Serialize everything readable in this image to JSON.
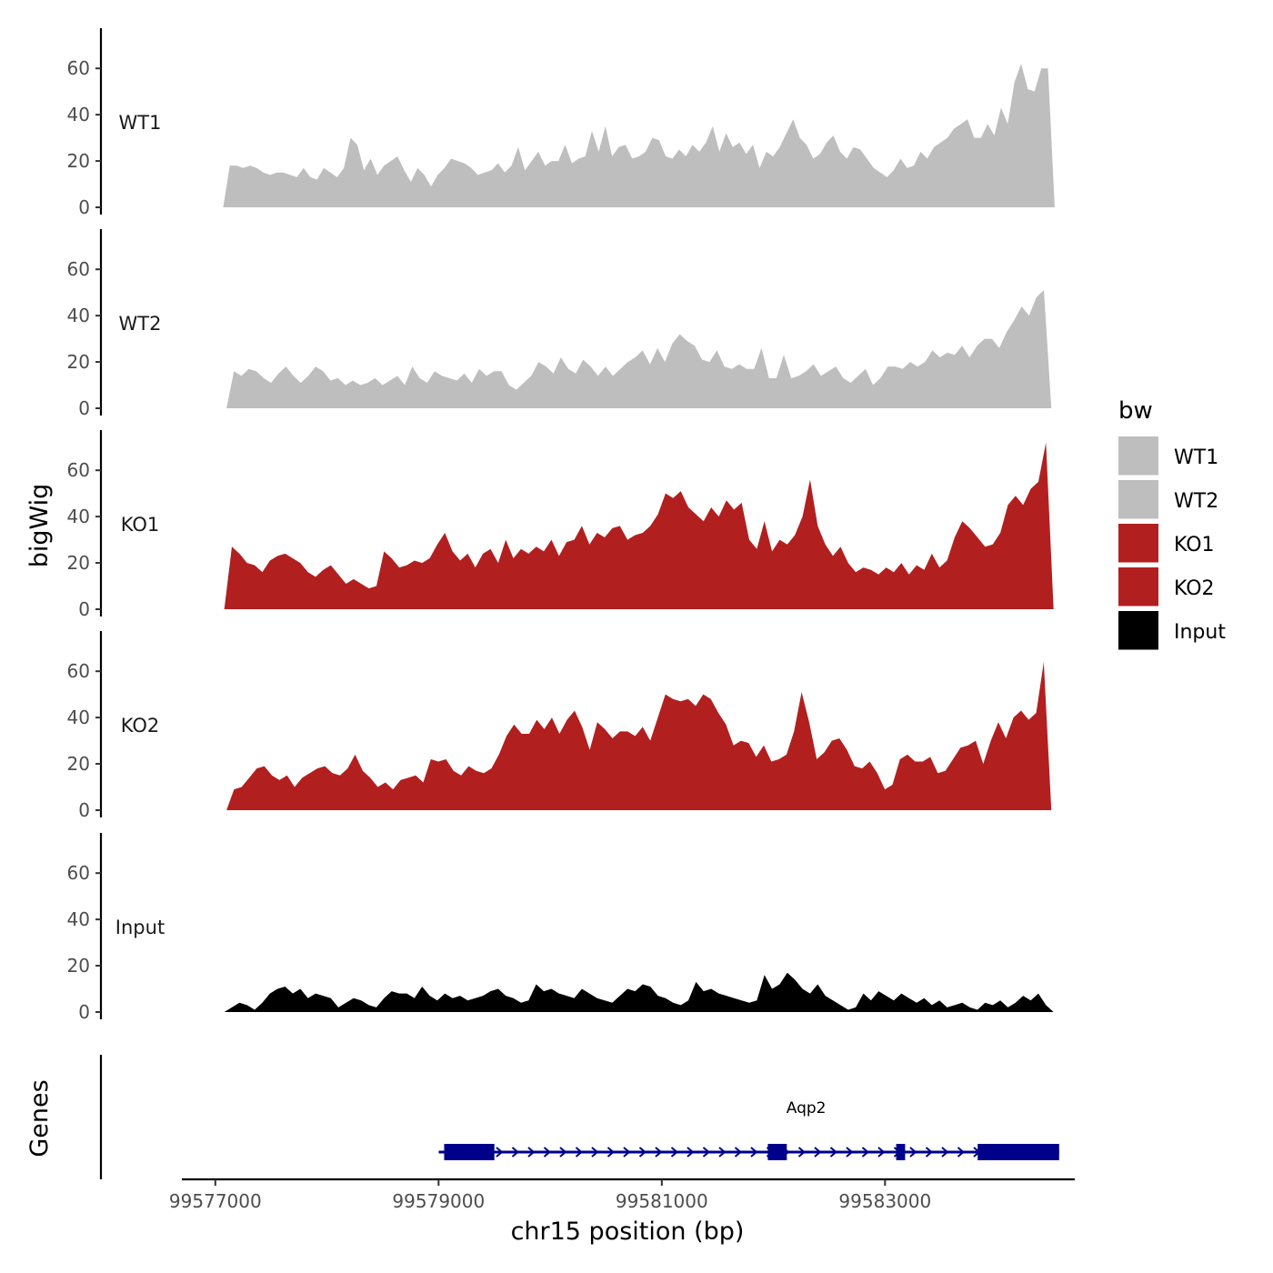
{
  "chart_data": {
    "type": "area",
    "ylabel": "bigWig",
    "xlabel": "chr15 position (bp)",
    "genes_label": "Genes",
    "chromosome": "chr15",
    "x_range": [
      99576700,
      99584700
    ],
    "x_ticks": [
      99577000,
      99579000,
      99581000,
      99583000
    ],
    "x_tick_labels": [
      "99577000",
      "99579000",
      "99581000",
      "99583000"
    ],
    "ylim": [
      0,
      75
    ],
    "y_ticks": [
      0,
      20,
      40,
      60
    ],
    "y_tick_labels": [
      "0",
      "20",
      "40",
      "60"
    ],
    "series": [
      {
        "name": "WT1",
        "color": "#bebebe",
        "x_start": 99577070,
        "x_end": 99584520,
        "values": [
          0,
          18,
          18,
          17,
          18,
          17,
          15,
          14,
          15,
          15,
          14,
          13,
          17,
          13,
          12,
          17,
          15,
          13,
          17,
          30,
          27,
          16,
          21,
          14,
          18,
          20,
          22,
          16,
          11,
          17,
          14,
          9,
          14,
          17,
          21,
          20,
          19,
          17,
          14,
          15,
          16,
          19,
          15,
          18,
          26,
          16,
          20,
          24,
          18,
          20,
          20,
          27,
          19,
          21,
          22,
          33,
          24,
          35,
          22,
          26,
          27,
          21,
          22,
          24,
          30,
          29,
          22,
          21,
          25,
          22,
          27,
          24,
          28,
          35,
          24,
          32,
          26,
          28,
          23,
          27,
          17,
          24,
          22,
          26,
          32,
          38,
          30,
          27,
          21,
          23,
          28,
          31,
          24,
          21,
          26,
          25,
          21,
          17,
          15,
          13,
          16,
          21,
          17,
          18,
          24,
          21,
          26,
          28,
          30,
          34,
          36,
          38,
          30,
          30,
          36,
          31,
          43,
          36,
          54,
          62,
          51,
          50,
          60,
          60,
          0
        ],
        "label_text": "WT1"
      },
      {
        "name": "WT2",
        "color": "#bebebe",
        "x_start": 99577100,
        "x_end": 99584490,
        "values": [
          0,
          16,
          14,
          17,
          16,
          13,
          11,
          15,
          18,
          14,
          11,
          14,
          18,
          16,
          12,
          13,
          10,
          12,
          10,
          11,
          13,
          10,
          12,
          14,
          10,
          18,
          13,
          11,
          16,
          14,
          13,
          12,
          15,
          11,
          17,
          14,
          16,
          16,
          10,
          8,
          11,
          14,
          20,
          18,
          15,
          22,
          17,
          15,
          21,
          18,
          14,
          18,
          14,
          17,
          20,
          22,
          25,
          19,
          26,
          20,
          28,
          32,
          29,
          27,
          21,
          20,
          25,
          18,
          17,
          19,
          17,
          17,
          26,
          13,
          13,
          23,
          13,
          14,
          16,
          19,
          14,
          16,
          18,
          13,
          11,
          14,
          17,
          10,
          13,
          18,
          18,
          17,
          20,
          18,
          20,
          25,
          22,
          24,
          23,
          27,
          22,
          27,
          30,
          30,
          26,
          33,
          38,
          44,
          40,
          48,
          51,
          0
        ],
        "label_text": "WT2"
      },
      {
        "name": "KO1",
        "color": "#b21f1f",
        "x_start": 99577080,
        "x_end": 99584510,
        "values": [
          0,
          27,
          24,
          20,
          19,
          16,
          21,
          23,
          24,
          22,
          20,
          16,
          14,
          17,
          19,
          15,
          11,
          13,
          11,
          9,
          10,
          25,
          22,
          18,
          19,
          21,
          20,
          22,
          28,
          33,
          25,
          21,
          24,
          18,
          24,
          26,
          20,
          30,
          22,
          26,
          24,
          27,
          25,
          30,
          23,
          29,
          30,
          36,
          28,
          33,
          31,
          35,
          36,
          30,
          32,
          33,
          36,
          41,
          50,
          48,
          51,
          44,
          41,
          38,
          44,
          40,
          47,
          43,
          46,
          30,
          26,
          38,
          25,
          30,
          28,
          32,
          40,
          56,
          36,
          28,
          23,
          27,
          20,
          16,
          18,
          17,
          15,
          18,
          16,
          20,
          15,
          19,
          17,
          24,
          18,
          21,
          31,
          38,
          35,
          31,
          27,
          28,
          33,
          45,
          49,
          45,
          52,
          55,
          72,
          0
        ],
        "label_text": "KO1"
      },
      {
        "name": "KO2",
        "color": "#b21f1f",
        "x_start": 99577100,
        "x_end": 99584490,
        "values": [
          0,
          9,
          10,
          14,
          18,
          19,
          15,
          13,
          15,
          10,
          14,
          16,
          18,
          19,
          16,
          15,
          18,
          24,
          17,
          14,
          10,
          12,
          9,
          13,
          14,
          15,
          12,
          22,
          21,
          22,
          17,
          15,
          19,
          17,
          16,
          18,
          24,
          32,
          37,
          33,
          33,
          39,
          35,
          40,
          33,
          39,
          43,
          36,
          26,
          38,
          35,
          31,
          34,
          34,
          32,
          36,
          30,
          40,
          50,
          48,
          47,
          48,
          45,
          50,
          48,
          42,
          37,
          28,
          30,
          29,
          23,
          28,
          21,
          22,
          24,
          34,
          51,
          38,
          22,
          25,
          30,
          31,
          26,
          19,
          18,
          21,
          16,
          9,
          11,
          22,
          24,
          21,
          21,
          23,
          16,
          17,
          22,
          27,
          28,
          30,
          20,
          30,
          38,
          31,
          40,
          43,
          39,
          42,
          64,
          0
        ],
        "label_text": "KO2"
      },
      {
        "name": "Input",
        "color": "#000000",
        "x_start": 99577080,
        "x_end": 99584510,
        "values": [
          0,
          2,
          4,
          3,
          1,
          4,
          8,
          10,
          11,
          8,
          10,
          6,
          8,
          7,
          6,
          2,
          4,
          6,
          5,
          3,
          2,
          6,
          9,
          8,
          8,
          6,
          11,
          7,
          5,
          8,
          6,
          7,
          5,
          6,
          7,
          9,
          10,
          7,
          6,
          4,
          5,
          12,
          9,
          10,
          8,
          7,
          6,
          10,
          8,
          6,
          5,
          4,
          7,
          10,
          9,
          12,
          11,
          7,
          6,
          4,
          3,
          5,
          13,
          9,
          10,
          8,
          7,
          6,
          5,
          4,
          5,
          16,
          10,
          12,
          17,
          14,
          10,
          8,
          12,
          7,
          5,
          3,
          1,
          2,
          8,
          5,
          9,
          7,
          5,
          8,
          6,
          4,
          6,
          3,
          5,
          2,
          3,
          4,
          2,
          1,
          4,
          3,
          5,
          2,
          4,
          7,
          5,
          8,
          3,
          0
        ],
        "label_text": "Input"
      }
    ],
    "legend": {
      "title": "bw",
      "position": "right",
      "entries": [
        {
          "label": "WT1",
          "color": "#bebebe"
        },
        {
          "label": "WT2",
          "color": "#bebebe"
        },
        {
          "label": "KO1",
          "color": "#b21f1f"
        },
        {
          "label": "KO2",
          "color": "#b21f1f"
        },
        {
          "label": "Input",
          "color": "#000000"
        }
      ]
    },
    "gene": {
      "name": "Aqp2",
      "color": "#00008b",
      "strand": "+",
      "start": 99579050,
      "end": 99584560,
      "exons": [
        [
          99579050,
          99579500
        ],
        [
          99581950,
          99582120
        ],
        [
          99583100,
          99583180
        ],
        [
          99583830,
          99584560
        ]
      ]
    }
  }
}
